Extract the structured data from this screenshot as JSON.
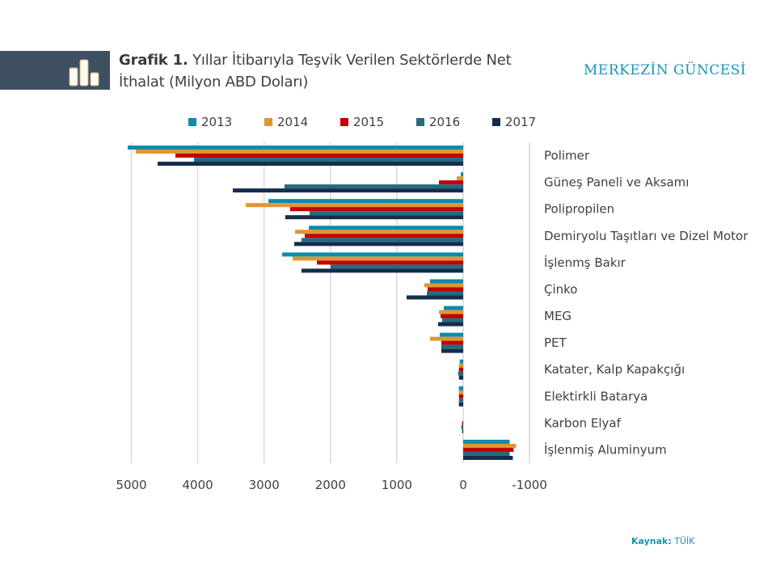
{
  "header": {
    "title_bold": "Grafik 1.",
    "title_rest": " Yıllar İtibarıyla Teşvik Verilen Sektörlerde Net İthalat (Milyon ABD Doları)",
    "brand": "MERKEZİN GÜNCESİ",
    "icon": "bar-chart-icon"
  },
  "source": {
    "label": "Kaynak:",
    "value": " TÜİK"
  },
  "chart_data": {
    "type": "bar",
    "orientation": "horizontal",
    "title": "Grafik 1. Yıllar İtibarıyla Teşvik Verilen Sektörlerde Net İthalat (Milyon ABD Doları)",
    "xlabel": "",
    "ylabel": "",
    "x_axis_reversed": true,
    "xlim": [
      -1000,
      5000
    ],
    "xticks": [
      5000,
      4000,
      3000,
      2000,
      1000,
      0,
      -1000
    ],
    "xtick_labels": [
      "5000",
      "4000",
      "3000",
      "2000",
      "1000",
      "0",
      "-1000"
    ],
    "grid": "vertical",
    "category_axis_side": "right",
    "legend_position": "top",
    "categories": [
      "Polimer",
      "Güneş Paneli ve Aksamı",
      "Polipropilen",
      "Demiryolu Taşıtları ve Dizel Motor",
      "İşlenmş Bakır",
      "Çinko",
      "MEG",
      "PET",
      "Katater, Kalp Kapakçığı",
      "Elektirkli Batarya",
      "Karbon Elyaf",
      "İşlenmiş Aluminyum"
    ],
    "series": [
      {
        "name": "2013",
        "color": "#0e8bab",
        "values": [
          5055,
          37,
          2935,
          2326,
          2728,
          499,
          292,
          353,
          52,
          64,
          0,
          -700
        ]
      },
      {
        "name": "2014",
        "color": "#de9634",
        "values": [
          4933,
          97,
          3276,
          2533,
          2570,
          585,
          365,
          499,
          64,
          64,
          0,
          -797
        ]
      },
      {
        "name": "2015",
        "color": "#c00000",
        "values": [
          4336,
          365,
          2607,
          2387,
          2205,
          536,
          341,
          329,
          64,
          64,
          16,
          -760
        ]
      },
      {
        "name": "2016",
        "color": "#256b7e",
        "values": [
          4056,
          2692,
          2314,
          2436,
          1998,
          548,
          317,
          329,
          77,
          64,
          28,
          -700
        ]
      },
      {
        "name": "2017",
        "color": "#152c4d",
        "values": [
          4604,
          3471,
          2680,
          2546,
          2436,
          853,
          378,
          329,
          64,
          64,
          16,
          -748
        ]
      }
    ]
  }
}
